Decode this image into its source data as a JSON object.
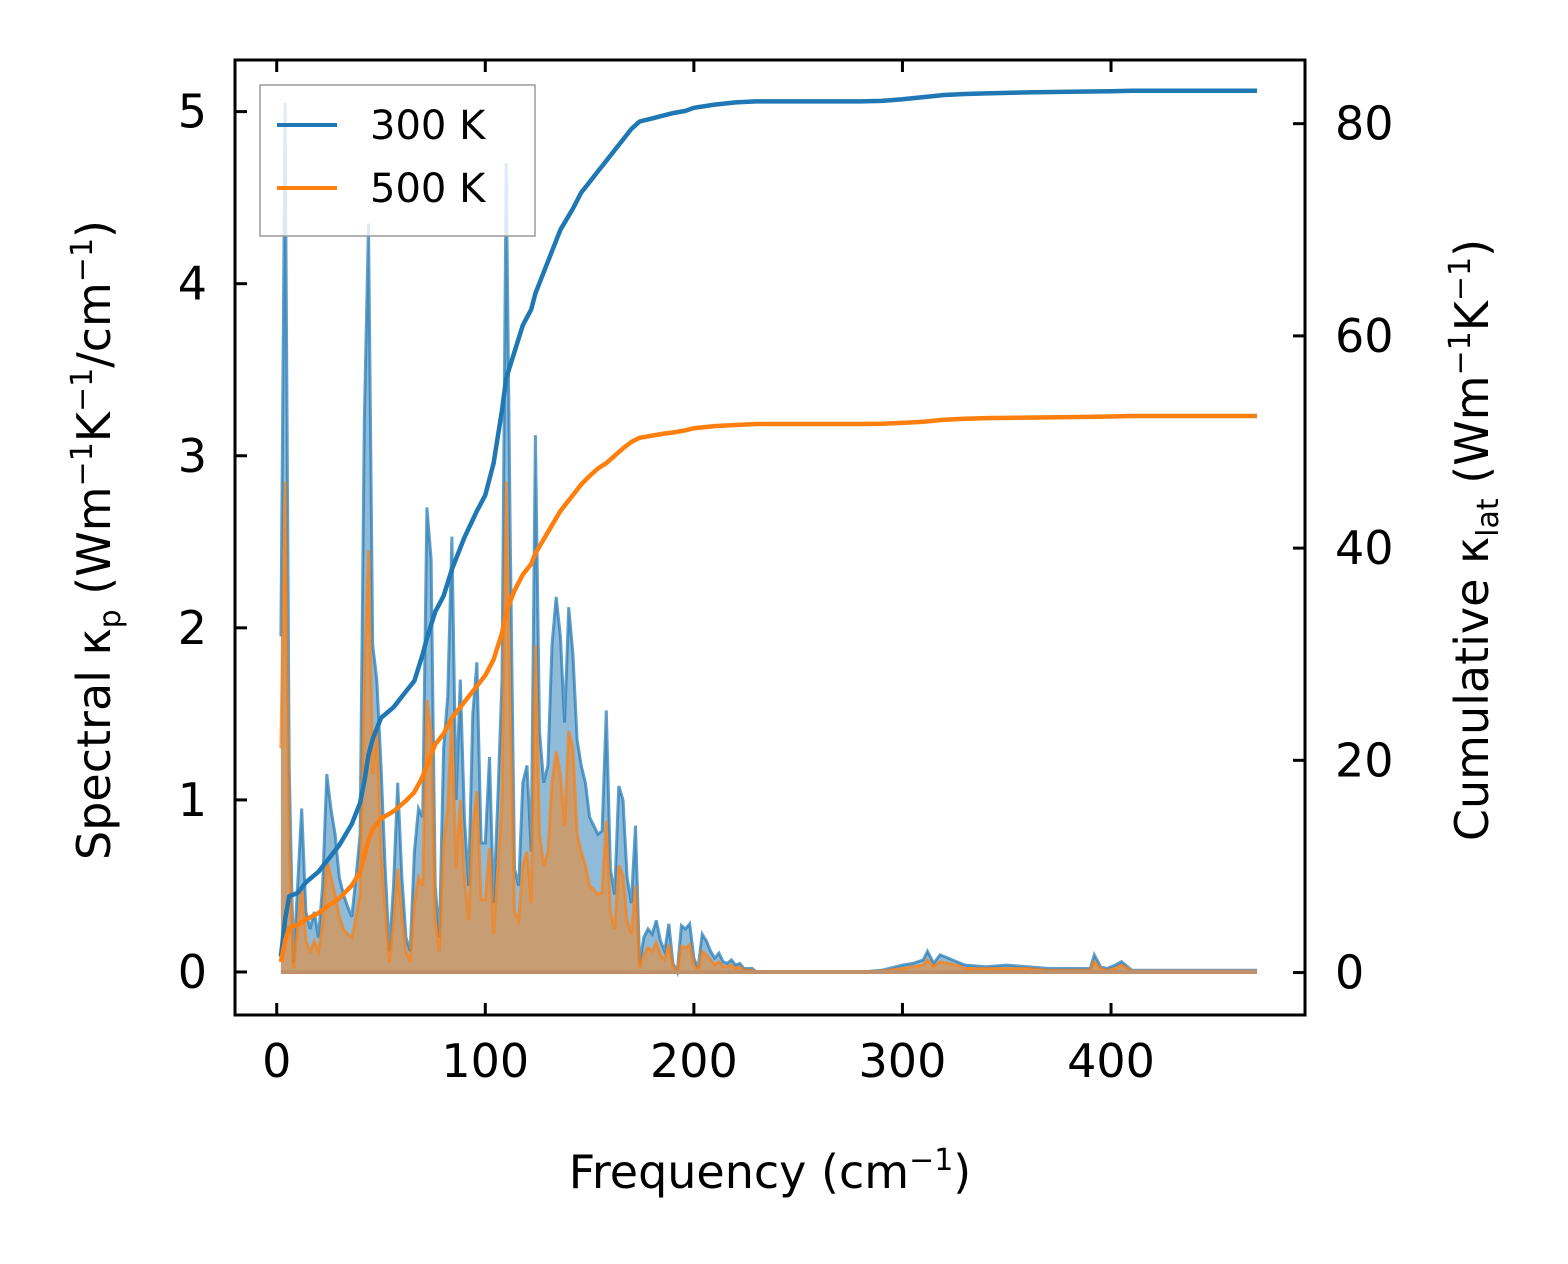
{
  "chart_data": {
    "type": "line",
    "xlabel": "Frequency (cm⁻¹)",
    "ylabel_left": "Spectral κₚ (Wm⁻¹K⁻¹/cm⁻¹)",
    "ylabel_right": "Cumulative κₗₐₜ (Wm⁻¹K⁻¹)",
    "xlim": [
      -20,
      493
    ],
    "ylim_left": [
      -0.25,
      5.3
    ],
    "ylim_right": [
      -4,
      86
    ],
    "xticks": [
      0,
      100,
      200,
      300,
      400
    ],
    "yticks_left": [
      0,
      1,
      2,
      3,
      4,
      5
    ],
    "yticks_right": [
      0,
      20,
      40,
      60,
      80
    ],
    "legend": {
      "position": "top-left",
      "entries": [
        "300 K",
        "500 K"
      ]
    },
    "grid": false,
    "colors": {
      "s300": "#1f77b4",
      "s500": "#ff7f0e",
      "fill300": "#1f77b4",
      "fill500": "#ff7f0e"
    },
    "spectral": {
      "x": [
        2,
        4,
        6,
        8,
        10,
        12,
        14,
        16,
        18,
        20,
        22,
        24,
        26,
        28,
        30,
        32,
        34,
        36,
        38,
        40,
        42,
        44,
        46,
        48,
        50,
        52,
        54,
        56,
        58,
        60,
        62,
        64,
        66,
        68,
        70,
        72,
        74,
        76,
        78,
        80,
        82,
        84,
        86,
        88,
        90,
        92,
        94,
        96,
        98,
        100,
        102,
        104,
        106,
        108,
        110,
        112,
        114,
        116,
        118,
        120,
        122,
        124,
        126,
        128,
        130,
        132,
        134,
        136,
        138,
        140,
        142,
        144,
        146,
        148,
        150,
        152,
        154,
        156,
        158,
        160,
        162,
        164,
        166,
        168,
        170,
        172,
        174,
        176,
        178,
        180,
        182,
        184,
        186,
        188,
        190,
        192,
        194,
        196,
        198,
        200,
        202,
        204,
        206,
        208,
        210,
        212,
        214,
        216,
        218,
        220,
        222,
        224,
        226,
        228,
        230,
        232,
        240,
        280,
        290,
        300,
        305,
        310,
        312,
        315,
        318,
        322,
        326,
        330,
        340,
        350,
        360,
        370,
        380,
        390,
        392,
        395,
        398,
        402,
        405,
        410,
        470
      ],
      "k300": [
        1.95,
        5.05,
        1.2,
        0.05,
        0.5,
        0.95,
        0.35,
        0.25,
        0.35,
        0.2,
        0.5,
        1.15,
        0.95,
        0.8,
        0.55,
        0.45,
        0.38,
        0.32,
        0.55,
        0.8,
        3.2,
        4.35,
        1.9,
        1.7,
        1.2,
        0.6,
        0.12,
        0.5,
        1.1,
        0.55,
        0.2,
        0.12,
        0.7,
        0.95,
        0.9,
        2.7,
        2.4,
        0.5,
        0.2,
        1.3,
        1.6,
        2.53,
        1.0,
        1.7,
        0.9,
        0.5,
        1.5,
        1.8,
        0.75,
        0.75,
        1.25,
        0.4,
        1.0,
        1.7,
        4.7,
        2.5,
        0.6,
        0.5,
        1.1,
        1.2,
        0.7,
        3.12,
        1.4,
        1.1,
        1.2,
        1.9,
        2.18,
        1.95,
        1.45,
        2.12,
        1.85,
        1.35,
        1.2,
        1.1,
        0.9,
        0.85,
        0.8,
        0.82,
        1.52,
        0.6,
        0.45,
        1.08,
        1.0,
        0.55,
        0.4,
        0.85,
        0.05,
        0.2,
        0.25,
        0.22,
        0.3,
        0.18,
        0.12,
        0.28,
        0.05,
        0.0,
        0.27,
        0.25,
        0.28,
        0.08,
        0.02,
        0.22,
        0.18,
        0.12,
        0.08,
        0.11,
        0.06,
        0.05,
        0.07,
        0.04,
        0.05,
        0.02,
        0.02,
        0.02,
        0.0,
        0.0,
        0.0,
        0.0,
        0.01,
        0.04,
        0.05,
        0.07,
        0.12,
        0.05,
        0.1,
        0.08,
        0.06,
        0.04,
        0.03,
        0.04,
        0.03,
        0.02,
        0.02,
        0.02,
        0.1,
        0.03,
        0.02,
        0.04,
        0.06,
        0.01,
        0.01
      ],
      "k500": [
        1.3,
        2.85,
        0.7,
        0.02,
        0.25,
        0.5,
        0.18,
        0.12,
        0.18,
        0.12,
        0.28,
        0.65,
        0.55,
        0.45,
        0.32,
        0.25,
        0.22,
        0.2,
        0.32,
        0.45,
        1.7,
        2.45,
        1.15,
        1.4,
        0.7,
        0.35,
        0.06,
        0.28,
        0.6,
        0.32,
        0.12,
        0.06,
        0.4,
        0.55,
        0.5,
        1.58,
        1.4,
        0.3,
        0.12,
        0.75,
        0.95,
        1.48,
        0.6,
        1.0,
        0.55,
        0.3,
        0.85,
        1.05,
        0.42,
        0.42,
        0.72,
        0.22,
        0.6,
        1.0,
        2.85,
        1.5,
        0.35,
        0.3,
        0.62,
        0.7,
        0.4,
        1.9,
        0.8,
        0.62,
        0.7,
        1.1,
        1.28,
        1.15,
        0.85,
        1.4,
        1.3,
        0.8,
        0.7,
        0.62,
        0.5,
        0.48,
        0.45,
        0.46,
        0.88,
        0.35,
        0.25,
        0.62,
        0.56,
        0.3,
        0.22,
        0.5,
        0.02,
        0.1,
        0.14,
        0.12,
        0.17,
        0.1,
        0.07,
        0.16,
        0.03,
        0.0,
        0.15,
        0.14,
        0.16,
        0.04,
        0.01,
        0.12,
        0.1,
        0.07,
        0.04,
        0.06,
        0.03,
        0.03,
        0.04,
        0.02,
        0.03,
        0.01,
        0.01,
        0.01,
        0.0,
        0.0,
        0.0,
        0.0,
        0.005,
        0.02,
        0.03,
        0.04,
        0.07,
        0.03,
        0.06,
        0.05,
        0.04,
        0.02,
        0.02,
        0.02,
        0.02,
        0.01,
        0.01,
        0.01,
        0.06,
        0.02,
        0.01,
        0.02,
        0.04,
        0.005,
        0.005
      ]
    },
    "cumulative": {
      "x": [
        2,
        4,
        6,
        10,
        14,
        20,
        24,
        30,
        36,
        40,
        42,
        44,
        46,
        50,
        56,
        62,
        66,
        70,
        72,
        76,
        80,
        84,
        90,
        96,
        100,
        104,
        108,
        110,
        114,
        118,
        122,
        124,
        130,
        136,
        142,
        146,
        150,
        154,
        158,
        162,
        166,
        170,
        174,
        180,
        186,
        190,
        196,
        200,
        210,
        220,
        230,
        240,
        260,
        280,
        290,
        300,
        310,
        320,
        330,
        340,
        360,
        380,
        400,
        410,
        430,
        470
      ],
      "c300": [
        1.5,
        5,
        7.2,
        7.5,
        8.5,
        9.5,
        10.5,
        12,
        14,
        16,
        18,
        20.5,
        22,
        24,
        25,
        26.5,
        27.5,
        30,
        31.5,
        34,
        35.5,
        38,
        41,
        43.5,
        45,
        48,
        53,
        56,
        58.5,
        61,
        62.5,
        64,
        67,
        70,
        72,
        73.5,
        74.5,
        75.5,
        76.5,
        77.5,
        78.5,
        79.5,
        80.2,
        80.5,
        80.8,
        81,
        81.2,
        81.5,
        81.8,
        82,
        82.1,
        82.1,
        82.1,
        82.1,
        82.15,
        82.3,
        82.5,
        82.7,
        82.8,
        82.85,
        82.95,
        83.0,
        83.05,
        83.1,
        83.1,
        83.1
      ],
      "c500": [
        1.0,
        3.0,
        4.2,
        4.5,
        5.0,
        5.6,
        6.2,
        7.0,
        8.2,
        9.5,
        11,
        12.5,
        13.5,
        14.5,
        15.2,
        16.2,
        17,
        18.5,
        19.5,
        21.5,
        22.5,
        24,
        25.5,
        27,
        28,
        29.5,
        32,
        34,
        36,
        37.5,
        38.5,
        39.5,
        41.5,
        43.5,
        45,
        46,
        46.8,
        47.5,
        48,
        48.7,
        49.4,
        50,
        50.4,
        50.6,
        50.8,
        50.9,
        51.1,
        51.3,
        51.5,
        51.6,
        51.7,
        51.7,
        51.7,
        51.7,
        51.72,
        51.8,
        51.9,
        52.1,
        52.2,
        52.25,
        52.3,
        52.35,
        52.4,
        52.45,
        52.45,
        52.45
      ]
    }
  }
}
